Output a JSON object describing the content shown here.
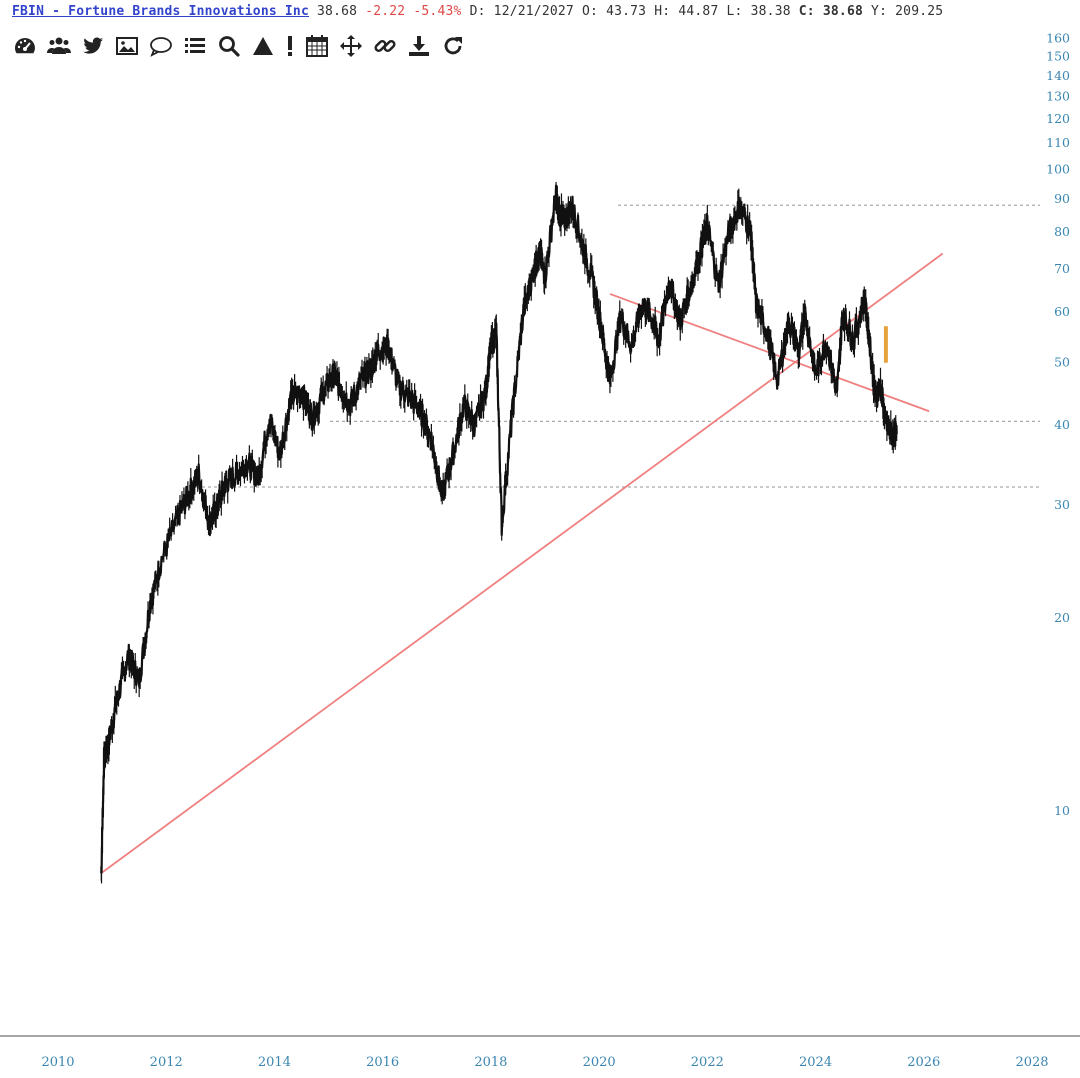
{
  "header": {
    "symbol_line": "FBIN - Fortune Brands Innovations Inc",
    "last": "38.68",
    "change": "-2.22",
    "change_pct": "-5.43%",
    "date_label": "D:",
    "date": "12/21/2027",
    "open_label": "O:",
    "open": "43.73",
    "high_label": "H:",
    "high": "44.87",
    "low_label": "L:",
    "low": "38.38",
    "close_label": "C:",
    "close": "38.68",
    "y_label": "Y:",
    "y": "209.25"
  },
  "toolbar": {
    "icons": [
      "dashboard-icon",
      "users-icon",
      "twitter-icon",
      "image-icon",
      "comment-icon",
      "list-icon",
      "search-icon",
      "triangle-icon",
      "exclamation-icon",
      "calendar-icon",
      "move-icon",
      "link-icon",
      "download-icon",
      "refresh-icon"
    ]
  },
  "colors": {
    "price": "#111111",
    "trendline": "#f08080",
    "axis_text": "#3a86b0",
    "guide": "#aaaaaa",
    "warn_candle": "#e6a23c"
  },
  "chart_data": {
    "type": "line",
    "title": "FBIN - Fortune Brands Innovations Inc",
    "xlabel": "",
    "ylabel": "",
    "y_scale": "log",
    "ylim": [
      6.5,
      165
    ],
    "xlim": [
      2010,
      2028.3
    ],
    "y_ticks": [
      10,
      20,
      30,
      40,
      50,
      60,
      70,
      80,
      90,
      100,
      110,
      120,
      130,
      140,
      150,
      160
    ],
    "x_ticks": [
      2010,
      2012,
      2014,
      2016,
      2018,
      2020,
      2022,
      2024,
      2026,
      2028
    ],
    "grid": false,
    "series": [
      {
        "values_x": [
          2010.8,
          2010.85,
          2010.95,
          2011.1,
          2011.3,
          2011.5,
          2011.7,
          2011.9,
          2012.2,
          2012.4,
          2012.6,
          2012.8,
          2012.95,
          2013.1,
          2013.3,
          2013.5,
          2013.7,
          2013.9,
          2014.1,
          2014.3,
          2014.5,
          2014.7,
          2014.9,
          2015.1,
          2015.2,
          2015.4,
          2015.6,
          2015.8,
          2015.9,
          2016.1,
          2016.3,
          2016.5,
          2016.7,
          2016.9,
          2017.1,
          2017.3,
          2017.5,
          2017.7,
          2017.9,
          2018.0,
          2018.1,
          2018.2,
          2018.4,
          2018.6,
          2018.8,
          2018.9,
          2019.0,
          2019.2,
          2019.25,
          2019.35,
          2019.5,
          2019.7,
          2019.9,
          2020.05,
          2020.2,
          2020.4,
          2020.6,
          2020.8,
          2021.0,
          2021.1,
          2021.3,
          2021.5,
          2021.7,
          2021.9,
          2022.0,
          2022.2,
          2022.4,
          2022.6,
          2022.8,
          2022.9,
          2023.1,
          2023.3,
          2023.5,
          2023.7,
          2023.8,
          2024.0,
          2024.2,
          2024.4,
          2024.5,
          2024.7,
          2024.9,
          2025.0,
          2025.1,
          2025.2,
          2025.3,
          2025.4,
          2025.5
        ],
        "values_y": [
          8.0,
          12.0,
          13.0,
          15.0,
          17.5,
          16.0,
          21.0,
          24.5,
          28.5,
          31.0,
          33.5,
          28.0,
          30.0,
          32.5,
          33.5,
          35.0,
          33.0,
          41.0,
          36.0,
          44.0,
          45.0,
          41.0,
          45.0,
          48.0,
          46.0,
          43.0,
          47.0,
          49.0,
          52.0,
          53.0,
          46.0,
          44.0,
          42.0,
          38.0,
          31.0,
          36.0,
          43.0,
          40.0,
          45.0,
          53.0,
          56.0,
          28.0,
          42.0,
          60.0,
          70.0,
          74.0,
          68.0,
          91.0,
          86.0,
          83.0,
          88.0,
          76.0,
          66.0,
          56.0,
          47.0,
          59.0,
          53.0,
          62.0,
          58.0,
          54.0,
          67.0,
          58.0,
          66.0,
          76.0,
          82.0,
          66.0,
          80.0,
          88.0,
          80.0,
          62.0,
          56.0,
          47.0,
          58.0,
          52.0,
          60.0,
          48.0,
          54.0,
          45.0,
          60.0,
          54.0,
          63.0,
          54.0,
          44.0,
          46.0,
          40.0,
          38.68,
          38.68
        ],
        "name": ""
      }
    ],
    "trendlines": [
      {
        "x": [
          2010.8,
          2026.35
        ],
        "y": [
          8.0,
          74.0
        ]
      },
      {
        "x": [
          2020.2,
          2026.1
        ],
        "y": [
          64.0,
          42.0
        ]
      }
    ],
    "guide_levels": [
      88.0,
      40.5,
      32.0
    ]
  }
}
